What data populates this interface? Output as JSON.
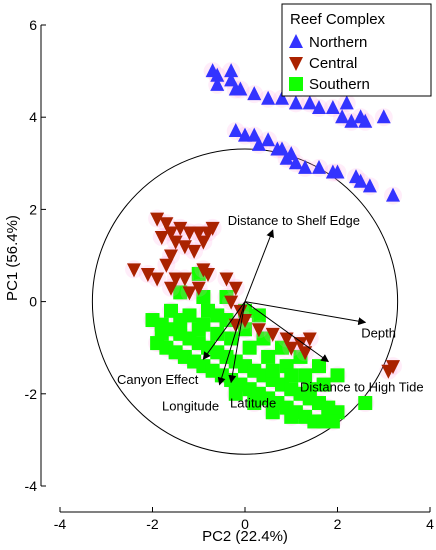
{
  "chart_data": {
    "type": "scatter",
    "xlabel": "PC2 (22.4%)",
    "ylabel": "PC1 (56.4%)",
    "xlim": [
      -4,
      4
    ],
    "ylim": [
      -4,
      6
    ],
    "x_ticks": [
      -4,
      -2,
      0,
      2,
      4
    ],
    "y_ticks": [
      -4,
      -2,
      0,
      2,
      4,
      6
    ],
    "x_tick_labels": [
      "-4",
      "-2",
      "0",
      "2",
      "4"
    ],
    "y_tick_labels": [
      "-4",
      "-2",
      "0",
      "2",
      "4",
      "6"
    ],
    "grid": false,
    "legend": {
      "title": "Reef Complex",
      "position": "top-right"
    },
    "correlation_circle": {
      "center": [
        0,
        0
      ],
      "radius": 3.3
    },
    "series": [
      {
        "name": "Northern",
        "marker": "triangle-up",
        "color": "#3333ff",
        "points": [
          [
            -0.7,
            5.0
          ],
          [
            -0.6,
            4.9
          ],
          [
            -0.3,
            5.0
          ],
          [
            -0.3,
            4.8
          ],
          [
            -0.6,
            4.7
          ],
          [
            -0.2,
            4.6
          ],
          [
            -0.1,
            4.6
          ],
          [
            0.2,
            4.5
          ],
          [
            0.5,
            4.4
          ],
          [
            0.8,
            4.4
          ],
          [
            1.1,
            4.3
          ],
          [
            1.4,
            4.3
          ],
          [
            1.6,
            4.2
          ],
          [
            1.9,
            4.2
          ],
          [
            2.1,
            4.0
          ],
          [
            2.3,
            3.9
          ],
          [
            2.5,
            4.0
          ],
          [
            2.2,
            4.3
          ],
          [
            3.0,
            4.0
          ],
          [
            2.6,
            3.9
          ],
          [
            -0.2,
            3.7
          ],
          [
            0.0,
            3.6
          ],
          [
            0.2,
            3.6
          ],
          [
            0.3,
            3.4
          ],
          [
            0.5,
            3.5
          ],
          [
            0.7,
            3.3
          ],
          [
            0.9,
            3.1
          ],
          [
            1.1,
            3.0
          ],
          [
            1.3,
            2.9
          ],
          [
            1.6,
            2.9
          ],
          [
            1.9,
            2.8
          ],
          [
            2.0,
            2.8
          ],
          [
            2.4,
            2.7
          ],
          [
            2.5,
            2.6
          ],
          [
            2.7,
            2.5
          ],
          [
            3.2,
            2.3
          ],
          [
            0.8,
            3.3
          ],
          [
            1.0,
            3.2
          ]
        ]
      },
      {
        "name": "Central",
        "marker": "triangle-down",
        "color": "#aa2200",
        "points": [
          [
            -1.9,
            1.8
          ],
          [
            -1.7,
            1.7
          ],
          [
            -1.6,
            1.5
          ],
          [
            -1.4,
            1.6
          ],
          [
            -1.2,
            1.5
          ],
          [
            -1.5,
            1.3
          ],
          [
            -1.8,
            1.4
          ],
          [
            -1.3,
            1.2
          ],
          [
            -1.1,
            1.1
          ],
          [
            -1.0,
            1.5
          ],
          [
            -0.8,
            1.5
          ],
          [
            -0.7,
            1.6
          ],
          [
            -0.9,
            1.3
          ],
          [
            -1.6,
            1.0
          ],
          [
            -1.7,
            0.8
          ],
          [
            -2.4,
            0.7
          ],
          [
            -2.1,
            0.6
          ],
          [
            -1.5,
            0.5
          ],
          [
            -1.9,
            0.5
          ],
          [
            -1.6,
            0.3
          ],
          [
            -1.3,
            0.5
          ],
          [
            -1.2,
            0.2
          ],
          [
            -1.0,
            0.3
          ],
          [
            -0.9,
            0.7
          ],
          [
            -0.8,
            0.6
          ],
          [
            -0.4,
            0.5
          ],
          [
            -0.2,
            0.3
          ],
          [
            -0.3,
            0.0
          ],
          [
            -0.1,
            -0.2
          ],
          [
            -0.2,
            -0.5
          ],
          [
            0.0,
            -0.4
          ],
          [
            0.3,
            -0.6
          ],
          [
            0.6,
            -0.7
          ],
          [
            0.9,
            -0.8
          ],
          [
            1.2,
            -0.9
          ],
          [
            1.3,
            -1.1
          ],
          [
            1.4,
            -0.8
          ],
          [
            1.0,
            -1.0
          ],
          [
            3.2,
            -1.4
          ],
          [
            3.1,
            -1.5
          ]
        ]
      },
      {
        "name": "Southern",
        "marker": "square",
        "color": "#11ff00",
        "points": [
          [
            -2.0,
            -0.4
          ],
          [
            -1.8,
            -0.5
          ],
          [
            -1.6,
            -0.6
          ],
          [
            -1.4,
            -0.7
          ],
          [
            -1.2,
            -0.8
          ],
          [
            -1.0,
            -0.9
          ],
          [
            -0.8,
            -1.0
          ],
          [
            -0.6,
            -1.1
          ],
          [
            -0.4,
            -1.2
          ],
          [
            -0.2,
            -1.3
          ],
          [
            0.0,
            -1.4
          ],
          [
            0.2,
            -1.5
          ],
          [
            0.4,
            -1.6
          ],
          [
            0.6,
            -1.7
          ],
          [
            0.8,
            -1.8
          ],
          [
            1.0,
            -1.9
          ],
          [
            1.2,
            -2.0
          ],
          [
            1.4,
            -2.1
          ],
          [
            1.6,
            -2.2
          ],
          [
            1.8,
            -2.3
          ],
          [
            2.0,
            -2.4
          ],
          [
            -1.9,
            -0.9
          ],
          [
            -1.7,
            -1.0
          ],
          [
            -1.5,
            -1.1
          ],
          [
            -1.3,
            -1.2
          ],
          [
            -1.1,
            -1.3
          ],
          [
            -0.9,
            -1.4
          ],
          [
            -0.7,
            -1.5
          ],
          [
            -0.5,
            -1.6
          ],
          [
            -0.3,
            -1.7
          ],
          [
            -0.1,
            -1.8
          ],
          [
            0.1,
            -1.9
          ],
          [
            0.3,
            -2.0
          ],
          [
            0.5,
            -2.1
          ],
          [
            0.7,
            -2.2
          ],
          [
            0.9,
            -2.3
          ],
          [
            1.1,
            -2.4
          ],
          [
            1.3,
            -2.5
          ],
          [
            1.5,
            -2.6
          ],
          [
            1.7,
            -2.6
          ],
          [
            1.9,
            -2.6
          ],
          [
            -1.6,
            -0.2
          ],
          [
            -1.2,
            -0.3
          ],
          [
            -0.8,
            -0.2
          ],
          [
            -0.4,
            -0.4
          ],
          [
            0.0,
            -0.6
          ],
          [
            0.4,
            -0.8
          ],
          [
            0.8,
            -1.0
          ],
          [
            1.2,
            -1.2
          ],
          [
            1.6,
            -1.4
          ],
          [
            2.0,
            -1.6
          ],
          [
            -0.3,
            -0.8
          ],
          [
            0.1,
            -1.0
          ],
          [
            0.5,
            -1.2
          ],
          [
            0.9,
            -1.4
          ],
          [
            1.3,
            -1.6
          ],
          [
            1.7,
            -1.8
          ],
          [
            -1.4,
            -0.4
          ],
          [
            -1.0,
            -0.6
          ],
          [
            -0.6,
            -0.7
          ],
          [
            0.6,
            -1.5
          ],
          [
            1.0,
            -1.6
          ],
          [
            1.4,
            -1.9
          ],
          [
            -1.0,
            0.6
          ],
          [
            -1.4,
            0.2
          ],
          [
            -0.9,
            0.1
          ],
          [
            -0.4,
            0.1
          ],
          [
            -0.6,
            -0.3
          ],
          [
            0.0,
            -0.2
          ],
          [
            2.6,
            -2.2
          ],
          [
            -1.8,
            -0.7
          ],
          [
            -0.2,
            -2.0
          ],
          [
            0.2,
            -2.2
          ],
          [
            0.6,
            -2.4
          ],
          [
            1.0,
            -2.5
          ],
          [
            -0.9,
            -0.5
          ],
          [
            0.3,
            -0.3
          ]
        ]
      }
    ],
    "vectors": [
      {
        "label": "Distance to Shelf Edge",
        "to": [
          0.6,
          1.55
        ]
      },
      {
        "label": "Depth",
        "to": [
          2.6,
          -0.45
        ]
      },
      {
        "label": "Distance to High Tide",
        "to": [
          1.8,
          -1.3
        ]
      },
      {
        "label": "Canyon Effect",
        "to": [
          -0.9,
          -1.25
        ]
      },
      {
        "label": "Longitude",
        "to": [
          -0.55,
          -1.8
        ]
      },
      {
        "label": "Latitude",
        "to": [
          -0.3,
          -1.75
        ]
      }
    ]
  }
}
